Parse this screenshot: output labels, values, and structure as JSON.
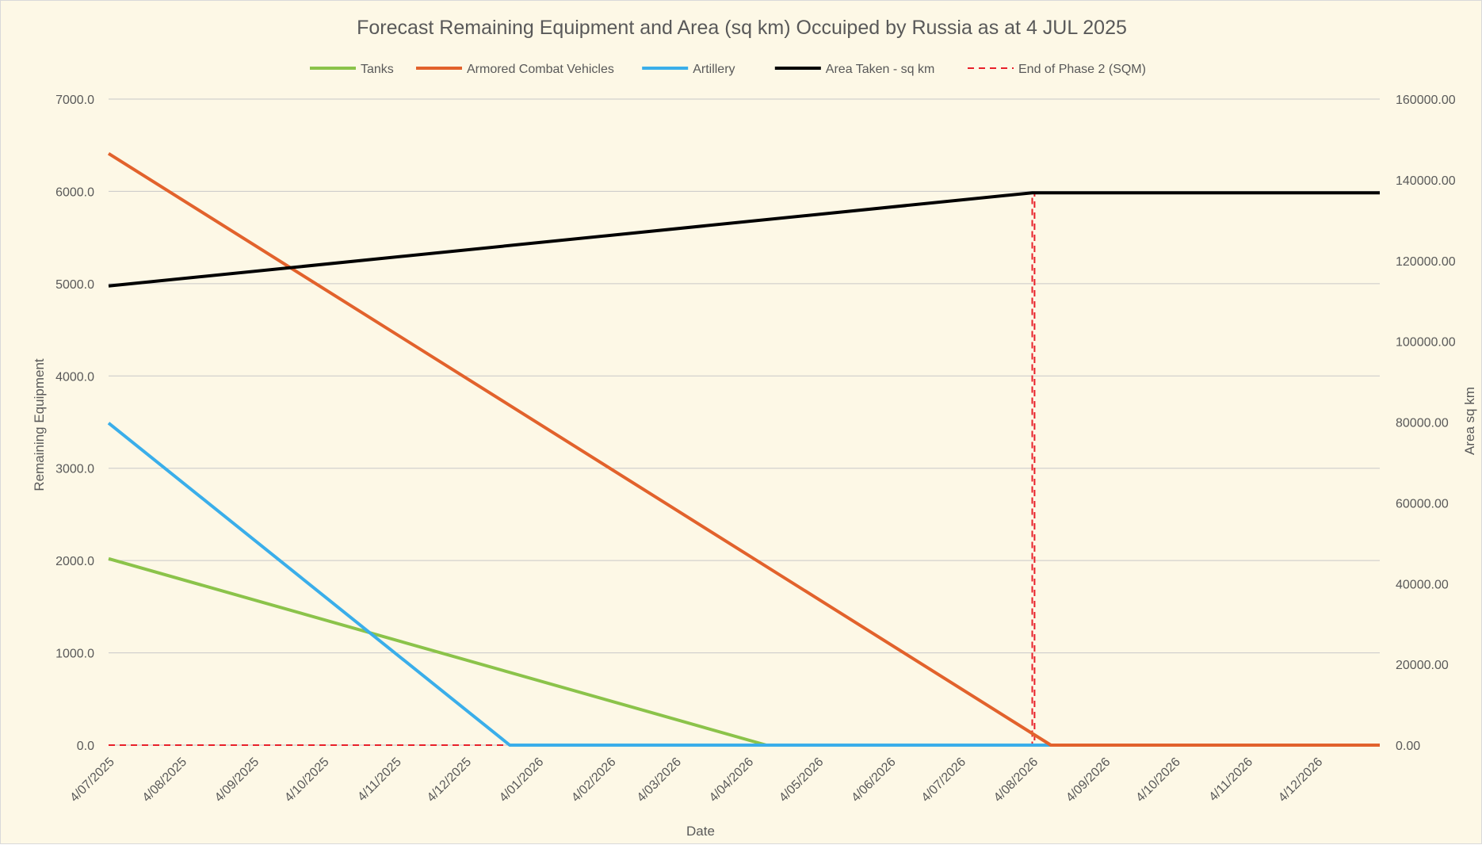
{
  "chart_data": {
    "type": "line",
    "title": "Forecast Remaining Equipment and Area (sq km) Occuiped by Russia as at 4 JUL 2025",
    "xlabel": "Date",
    "ylabel": "Remaining Equipment",
    "y2label": "Area sq km",
    "ylim": [
      0,
      7000
    ],
    "y2lim": [
      0,
      160000
    ],
    "grid": true,
    "legend_position": "top",
    "x_ticks": [
      "4/07/2025",
      "4/08/2025",
      "4/09/2025",
      "4/10/2025",
      "4/11/2025",
      "4/12/2025",
      "4/01/2026",
      "4/02/2026",
      "4/03/2026",
      "4/04/2026",
      "4/05/2026",
      "4/06/2026",
      "4/07/2026",
      "4/08/2026",
      "4/09/2026",
      "4/10/2026",
      "4/11/2026",
      "4/12/2026"
    ],
    "x_end": "2026-12-31",
    "y_ticks": [
      "7000.0",
      "6000.0",
      "5000.0",
      "4000.0",
      "3000.0",
      "2000.0",
      "1000.0",
      "0.0"
    ],
    "y2_ticks": [
      "160000.00",
      "140000.00",
      "120000.00",
      "100000.00",
      "80000.00",
      "60000.00",
      "40000.00",
      "20000.00",
      "0.00"
    ],
    "series": [
      {
        "name": "Tanks",
        "axis": "left",
        "color": "#8bc34a",
        "style": "solid",
        "points": [
          [
            "2025-07-04",
            2020
          ],
          [
            "2026-04-12",
            0
          ],
          [
            "2026-12-31",
            0
          ]
        ]
      },
      {
        "name": "Armored Combat Vehicles",
        "axis": "left",
        "color": "#e2622c",
        "style": "solid",
        "points": [
          [
            "2025-07-04",
            6410
          ],
          [
            "2026-08-12",
            0
          ],
          [
            "2026-12-31",
            0
          ]
        ]
      },
      {
        "name": "Artillery",
        "axis": "left",
        "color": "#3aaeea",
        "style": "solid",
        "points": [
          [
            "2025-07-04",
            3490
          ],
          [
            "2025-12-23",
            0
          ],
          [
            "2026-12-31",
            0
          ]
        ]
      },
      {
        "name": "Area Taken - sq km",
        "axis": "right",
        "color": "#000000",
        "style": "solid",
        "points": [
          [
            "2025-07-04",
            113700
          ],
          [
            "2026-08-04",
            136800
          ],
          [
            "2026-12-31",
            136800
          ]
        ]
      },
      {
        "name": "End of Phase 2 (SQM)",
        "axis": "right",
        "color": "#e8202a",
        "style": "dashed",
        "points": [
          [
            "2025-07-04",
            0
          ],
          [
            "2026-08-04",
            0
          ],
          [
            "2026-08-04",
            136800
          ],
          [
            "2026-08-05",
            136800
          ],
          [
            "2026-08-05",
            0
          ]
        ]
      }
    ]
  }
}
